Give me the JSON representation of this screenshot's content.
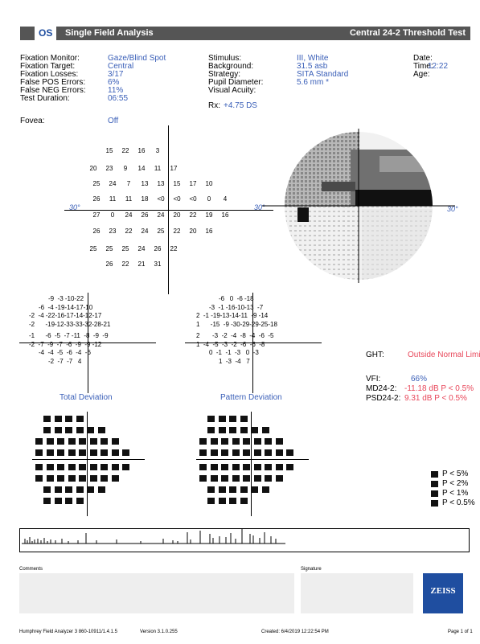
{
  "header": {
    "eye": "OS",
    "title": "Single Field Analysis",
    "test": "Central 24-2 Threshold Test"
  },
  "info_left": [
    {
      "label": "Fixation Monitor:",
      "value": "Gaze/Blind Spot"
    },
    {
      "label": "Fixation Target:",
      "value": "Central"
    },
    {
      "label": "Fixation Losses:",
      "value": "3/17"
    },
    {
      "label": "False POS Errors:",
      "value": "6%"
    },
    {
      "label": "False NEG Errors:",
      "value": "11%"
    },
    {
      "label": "Test Duration:",
      "value": "06:55"
    }
  ],
  "fovea": {
    "label": "Fovea:",
    "value": "Off"
  },
  "info_mid": [
    {
      "label": "Stimulus:",
      "value": "III, White"
    },
    {
      "label": "Background:",
      "value": "31.5 asb"
    },
    {
      "label": "Strategy:",
      "value": "SITA Standard"
    },
    {
      "label": "Pupil Diameter:",
      "value": "5.6 mm *"
    },
    {
      "label": "Visual Acuity:",
      "value": ""
    }
  ],
  "rx": {
    "label": "Rx:",
    "value": "+4.75 DS"
  },
  "info_right": [
    {
      "label": "Date:",
      "value": ""
    },
    {
      "label": "Time:",
      "value": "12:22"
    },
    {
      "label": "Age:",
      "value": ""
    }
  ],
  "threshold_rows": [
    [
      "",
      "",
      "15",
      "22",
      "16",
      "3",
      "",
      ""
    ],
    [
      "",
      "20",
      "23",
      "9",
      "14",
      "11",
      "17",
      ""
    ],
    [
      "25",
      "24",
      "7",
      "13",
      "13",
      "15",
      "17",
      "10"
    ],
    [
      "26",
      "11",
      "11",
      "18",
      "<0",
      "<0",
      "<0",
      "0",
      "4"
    ],
    [
      "27",
      "0",
      "24",
      "26",
      "24",
      "20",
      "22",
      "19",
      "16"
    ],
    [
      "26",
      "23",
      "22",
      "24",
      "25",
      "22",
      "20",
      "16"
    ],
    [
      "",
      "25",
      "25",
      "25",
      "24",
      "26",
      "22",
      ""
    ],
    [
      "",
      "",
      "26",
      "22",
      "21",
      "31",
      "",
      ""
    ]
  ],
  "axis_degree_label": "30°",
  "total_dev_rows": [
    "-9  -3 -10-22",
    "-6  -4 -19-14-17-10",
    "-2  -4 -22-16-17-14-12-17",
    "-2      -19-12-33-33-32-28-21",
    "-1      -6  -5  -7 -11  -8  -9  -9",
    "-2  -7  -9  -7  -6  -9  -9 -12",
    "-4  -4  -5  -6  -4  -6",
    "-2  -7  -7   4"
  ],
  "pattern_dev_rows": [
    "-6   0  -6 -18",
    "-3  -1 -16-10-13  -7",
    "2  -1 -19-13-14-11  -9 -14",
    "1      -15  -9 -30-29-29-25-18",
    "2       -3  -2  -4  -8  -4  -6  -5",
    "1  -4  -5  -3  -2  -6  -6  -8",
    "0  -1  -1  -3   0  -3",
    "1  -3  -4   7"
  ],
  "total_dev_label": "Total Deviation",
  "pattern_dev_label": "Pattern Deviation",
  "ght": {
    "label": "GHT:",
    "value": "Outside Normal Limits"
  },
  "vfi": {
    "label": "VFI:",
    "value": "66%"
  },
  "md": {
    "label": "MD24-2:",
    "value": "-11.18 dB P < 0.5%"
  },
  "psd": {
    "label": "PSD24-2:",
    "value": "9.31 dB P < 0.5%"
  },
  "legend": [
    "P < 5%",
    "P < 2%",
    "P < 1%",
    "P < 0.5%"
  ],
  "comments_label": "Comments",
  "signature_label": "Signature",
  "logo": "ZEISS",
  "footer": {
    "device": "Humphrey Field Analyzer 3 860-10911/1.4.1.5",
    "version": "Version 3.1.0.255",
    "created": "Created: 6/4/2019 12:22:54 PM",
    "page": "Page 1 of 1"
  },
  "colors": {
    "header_bg": "#555555",
    "blue": "#3a5fb8",
    "red": "#e8475a"
  }
}
